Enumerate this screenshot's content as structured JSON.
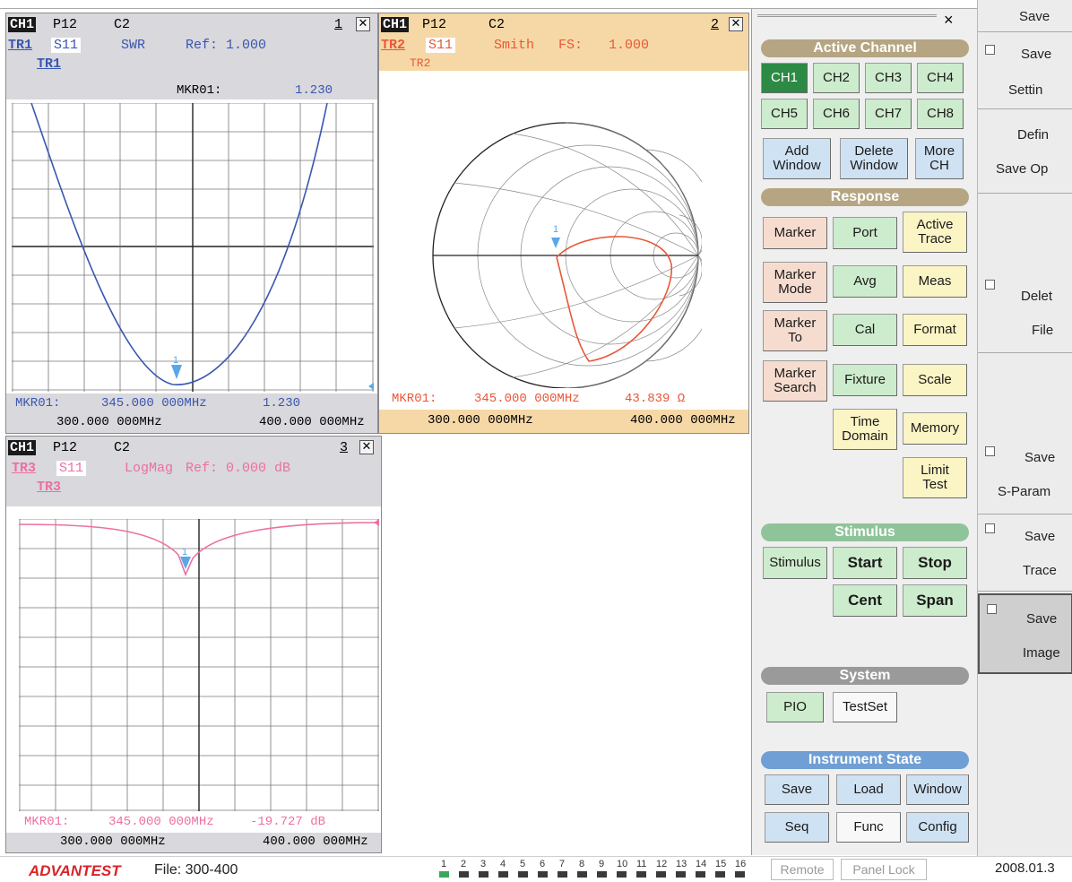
{
  "colors": {
    "trace1": "#3a56b0",
    "trace2": "#e8583a",
    "trace3": "#ee6fa2",
    "marker": "#5aa7e8",
    "active_channel": "#2c8a45"
  },
  "window1": {
    "ch": "CH1",
    "port": "P12",
    "cname": "C2",
    "num": "1",
    "trace": "TR1",
    "param": "S11",
    "format": "SWR",
    "ref": "Ref: 1.000",
    "trace_tag": "TR1",
    "mkr_top_label": "MKR01:",
    "mkr_top_value": "1.230",
    "mkr_label": "MKR01:",
    "mkr_freq": "345.000 000MHz",
    "mkr_value": "1.230",
    "start": "300.000 000MHz",
    "stop": "400.000 000MHz"
  },
  "window2": {
    "ch": "CH1",
    "port": "P12",
    "cname": "C2",
    "num": "2",
    "trace": "TR2",
    "param": "S11",
    "format": "Smith",
    "fs": "FS:",
    "fs_value": "1.000",
    "trace_tag": "TR2",
    "mkr_label": "MKR01:",
    "mkr_freq": "345.000 000MHz",
    "mkr_value": "43.839 Ω",
    "start": "300.000 000MHz",
    "stop": "400.000 000MHz"
  },
  "window3": {
    "ch": "CH1",
    "port": "P12",
    "cname": "C2",
    "num": "3",
    "trace": "TR3",
    "param": "S11",
    "format": "LogMag",
    "ref": "Ref: 0.000 dB",
    "trace_tag": "TR3",
    "mkr_label": "MKR01:",
    "mkr_freq": "345.000 000MHz",
    "mkr_value": "-19.727 dB",
    "start": "300.000 000MHz",
    "stop": "400.000 000MHz"
  },
  "marker_number": "1",
  "chart_data": [
    {
      "type": "line",
      "title": "SWR",
      "x": [
        300,
        310,
        320,
        330,
        340,
        345,
        350,
        360,
        370,
        380,
        390,
        400
      ],
      "y": [
        4.0,
        3.4,
        2.7,
        2.1,
        1.45,
        1.23,
        1.4,
        2.0,
        2.7,
        3.3,
        3.9,
        4.0
      ]
    },
    {
      "type": "line",
      "title": "Smith",
      "mkr": "43.839 Ω"
    },
    {
      "type": "line",
      "title": "LogMag",
      "x": [
        300,
        320,
        335,
        340,
        345,
        350,
        355,
        370,
        400
      ],
      "y": [
        -0.5,
        -1.0,
        -3.5,
        -8.0,
        -19.727,
        -9.0,
        -4.0,
        -1.2,
        -0.3
      ]
    }
  ],
  "menu": {
    "close": "×",
    "active_channel": "Active Channel",
    "channels": [
      "CH1",
      "CH2",
      "CH3",
      "CH4",
      "CH5",
      "CH6",
      "CH7",
      "CH8"
    ],
    "add_window": [
      "Add",
      "Window"
    ],
    "delete_window": [
      "Delete",
      "Window"
    ],
    "more_ch": [
      "More",
      "CH"
    ],
    "response": "Response",
    "marker": "Marker",
    "port": "Port",
    "active_trace": [
      "Active",
      "Trace"
    ],
    "marker_mode": [
      "Marker",
      "Mode"
    ],
    "avg": "Avg",
    "meas": "Meas",
    "marker_to": [
      "Marker",
      "To"
    ],
    "cal": "Cal",
    "format": "Format",
    "marker_search": [
      "Marker",
      "Search"
    ],
    "fixture": "Fixture",
    "scale": "Scale",
    "time_domain": [
      "Time",
      "Domain"
    ],
    "memory": "Memory",
    "limit_test": [
      "Limit",
      "Test"
    ],
    "stimulus_hdr": "Stimulus",
    "stimulus": "Stimulus",
    "start": "Start",
    "stop": "Stop",
    "cent": "Cent",
    "span": "Span",
    "system_hdr": "System",
    "pio": "PIO",
    "testset": "TestSet",
    "instrument_state": "Instrument State",
    "save": "Save",
    "load": "Load",
    "window": "Window",
    "seq": "Seq",
    "func": "Func",
    "config": "Config"
  },
  "strip": {
    "save_top": "Save",
    "save_settings": [
      "Save",
      "Settin"
    ],
    "define": [
      "Defin",
      "Save Op"
    ],
    "delete_file": [
      "Delet",
      "File"
    ],
    "save_sparam": [
      "Save",
      "S-Param"
    ],
    "save_trace": [
      "Save",
      "Trace"
    ],
    "save_image": [
      "Save",
      "Image"
    ]
  },
  "footer": {
    "brand": "ADVANTEST",
    "file": "File: 300-400",
    "tabs": [
      "1",
      "2",
      "3",
      "4",
      "5",
      "6",
      "7",
      "8",
      "9",
      "10",
      "11",
      "12",
      "13",
      "14",
      "15",
      "16"
    ],
    "remote": "Remote",
    "panel_lock": "Panel Lock",
    "date": "2008.01.3"
  }
}
